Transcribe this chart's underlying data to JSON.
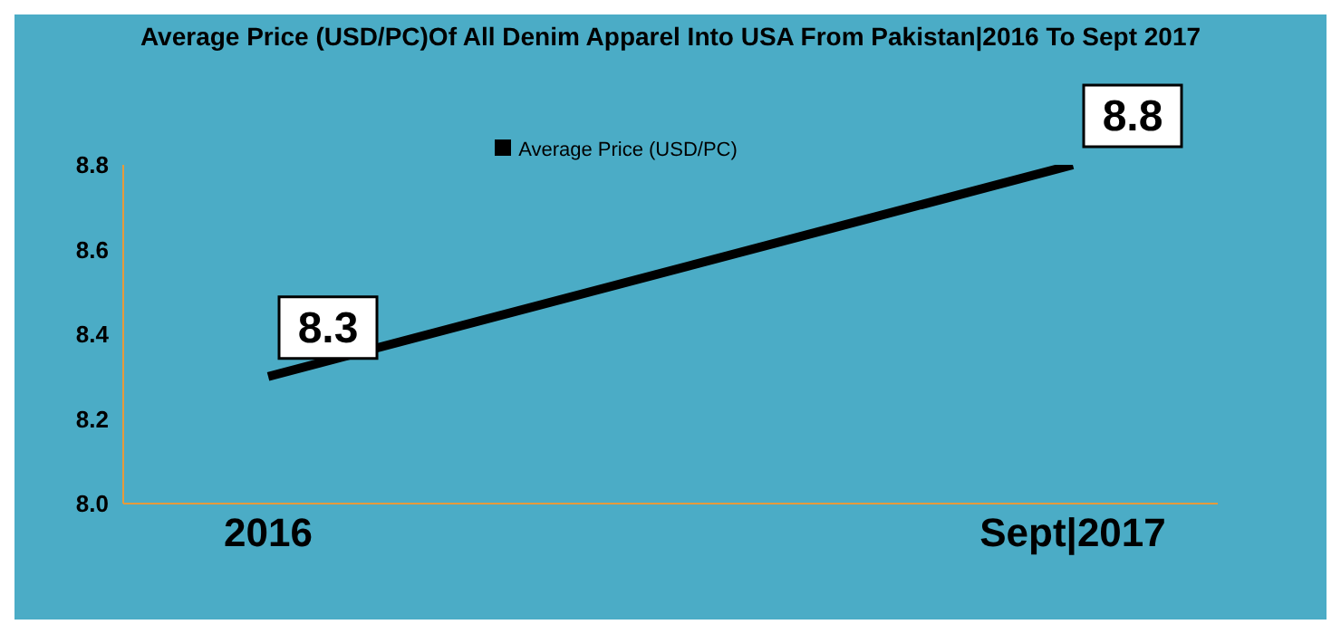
{
  "chart_data": {
    "type": "line",
    "title": "Average Price (USD/PC)Of All Denim Apparel Into USA From Pakistan|2016 To Sept 2017",
    "categories": [
      "2016",
      "Sept|2017"
    ],
    "series": [
      {
        "name": "Average Price (USD/PC)",
        "color": "#000000",
        "values": [
          8.3,
          8.8
        ]
      }
    ],
    "ylim": [
      8.0,
      8.8
    ],
    "yticks": [
      {
        "value": 8.0,
        "label": "8.0"
      },
      8.2,
      8.4,
      8.6,
      8.8
    ],
    "legend": "top",
    "marker": "none",
    "line_style": "solid",
    "data_labels": true
  }
}
